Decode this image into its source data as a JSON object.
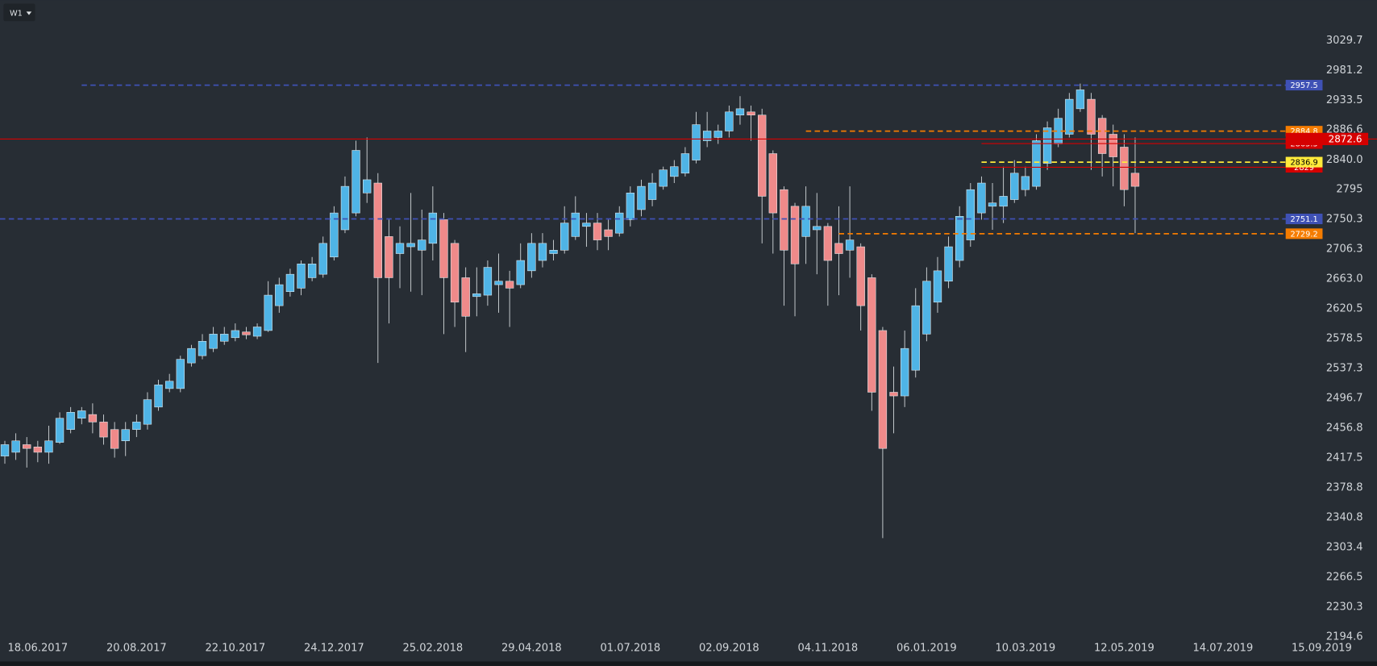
{
  "chart_data": {
    "type": "candlestick",
    "timeframe": "W1",
    "log_scale": true,
    "up_color": "#4fb4e6",
    "down_color": "#ef8a8a",
    "x": [
      "28.05.2017",
      "04.06.2017",
      "11.06.2017",
      "18.06.2017",
      "25.06.2017",
      "02.07.2017",
      "09.07.2017",
      "16.07.2017",
      "23.07.2017",
      "30.07.2017",
      "06.08.2017",
      "13.08.2017",
      "20.08.2017",
      "27.08.2017",
      "03.09.2017",
      "10.09.2017",
      "17.09.2017",
      "24.09.2017",
      "01.10.2017",
      "08.10.2017",
      "15.10.2017",
      "22.10.2017",
      "29.10.2017",
      "05.11.2017",
      "12.11.2017",
      "19.11.2017",
      "26.11.2017",
      "03.12.2017",
      "10.12.2017",
      "17.12.2017",
      "24.12.2017",
      "31.12.2017",
      "07.01.2018",
      "14.01.2018",
      "21.01.2018",
      "28.01.2018",
      "04.02.2018",
      "11.02.2018",
      "18.02.2018",
      "25.02.2018",
      "04.03.2018",
      "11.03.2018",
      "18.03.2018",
      "25.03.2018",
      "01.04.2018",
      "08.04.2018",
      "15.04.2018",
      "22.04.2018",
      "29.04.2018",
      "06.05.2018",
      "13.05.2018",
      "20.05.2018",
      "27.05.2018",
      "03.06.2018",
      "10.06.2018",
      "17.06.2018",
      "24.06.2018",
      "01.07.2018",
      "08.07.2018",
      "15.07.2018",
      "22.07.2018",
      "29.07.2018",
      "05.08.2018",
      "12.08.2018",
      "19.08.2018",
      "26.08.2018",
      "02.09.2018",
      "09.09.2018",
      "16.09.2018",
      "23.09.2018",
      "30.09.2018",
      "07.10.2018",
      "14.10.2018",
      "21.10.2018",
      "28.10.2018",
      "04.11.2018",
      "11.11.2018",
      "18.11.2018",
      "25.11.2018",
      "02.12.2018",
      "09.12.2018",
      "16.12.2018",
      "23.12.2018",
      "30.12.2018",
      "06.01.2019",
      "13.01.2019",
      "20.01.2019",
      "27.01.2019",
      "03.02.2019",
      "10.02.2019",
      "17.02.2019",
      "24.02.2019",
      "03.03.2019",
      "10.03.2019",
      "17.03.2019",
      "24.03.2019",
      "31.03.2019",
      "07.04.2019",
      "14.04.2019",
      "21.04.2019",
      "28.04.2019",
      "05.05.2019",
      "12.05.2019",
      "19.05.2019"
    ],
    "open": [
      2420,
      2425,
      2435,
      2432,
      2425,
      2438,
      2455,
      2470,
      2475,
      2465,
      2455,
      2440,
      2455,
      2462,
      2485,
      2510,
      2510,
      2545,
      2555,
      2565,
      2575,
      2580,
      2588,
      2582,
      2590,
      2625,
      2645,
      2650,
      2665,
      2670,
      2695,
      2735,
      2760,
      2790,
      2805,
      2725,
      2700,
      2710,
      2705,
      2715,
      2750,
      2715,
      2665,
      2638,
      2640,
      2655,
      2660,
      2655,
      2675,
      2690,
      2700,
      2705,
      2725,
      2740,
      2745,
      2735,
      2730,
      2750,
      2765,
      2780,
      2800,
      2815,
      2820,
      2840,
      2870,
      2875,
      2885,
      2910,
      2915,
      2910,
      2850,
      2795,
      2770,
      2725,
      2735,
      2740,
      2715,
      2705,
      2710,
      2665,
      2590,
      2505,
      2500,
      2535,
      2585,
      2630,
      2660,
      2690,
      2720,
      2760,
      2770,
      2770,
      2780,
      2795,
      2800,
      2835,
      2865,
      2880,
      2920,
      2935,
      2905,
      2880,
      2860,
      2820
    ],
    "high": [
      2440,
      2450,
      2445,
      2440,
      2460,
      2478,
      2485,
      2485,
      2490,
      2475,
      2465,
      2465,
      2475,
      2505,
      2522,
      2530,
      2555,
      2570,
      2585,
      2595,
      2595,
      2600,
      2595,
      2600,
      2660,
      2665,
      2678,
      2690,
      2695,
      2725,
      2770,
      2815,
      2870,
      2875,
      2820,
      2750,
      2740,
      2790,
      2765,
      2800,
      2760,
      2720,
      2680,
      2680,
      2690,
      2700,
      2675,
      2715,
      2730,
      2730,
      2720,
      2770,
      2785,
      2760,
      2760,
      2750,
      2770,
      2800,
      2810,
      2820,
      2830,
      2840,
      2860,
      2915,
      2915,
      2895,
      2925,
      2940,
      2925,
      2920,
      2855,
      2800,
      2775,
      2800,
      2790,
      2745,
      2770,
      2800,
      2715,
      2670,
      2595,
      2540,
      2590,
      2650,
      2680,
      2695,
      2725,
      2770,
      2805,
      2815,
      2805,
      2830,
      2840,
      2830,
      2880,
      2900,
      2920,
      2945,
      2960,
      2945,
      2910,
      2895,
      2880,
      2875
    ],
    "low": [
      2410,
      2415,
      2405,
      2412,
      2410,
      2436,
      2450,
      2462,
      2450,
      2435,
      2418,
      2420,
      2445,
      2455,
      2480,
      2505,
      2505,
      2540,
      2550,
      2560,
      2570,
      2575,
      2578,
      2578,
      2588,
      2615,
      2638,
      2640,
      2660,
      2665,
      2690,
      2730,
      2755,
      2775,
      2545,
      2600,
      2650,
      2645,
      2640,
      2690,
      2585,
      2595,
      2560,
      2610,
      2625,
      2615,
      2595,
      2650,
      2665,
      2680,
      2690,
      2700,
      2720,
      2710,
      2705,
      2705,
      2725,
      2740,
      2755,
      2770,
      2795,
      2805,
      2815,
      2835,
      2860,
      2865,
      2875,
      2895,
      2870,
      2715,
      2700,
      2625,
      2610,
      2685,
      2670,
      2625,
      2640,
      2665,
      2590,
      2480,
      2315,
      2450,
      2485,
      2525,
      2575,
      2615,
      2650,
      2680,
      2710,
      2750,
      2735,
      2745,
      2775,
      2785,
      2795,
      2825,
      2860,
      2875,
      2915,
      2825,
      2815,
      2800,
      2770,
      2730
    ],
    "close": [
      2435,
      2440,
      2430,
      2425,
      2440,
      2470,
      2478,
      2480,
      2465,
      2445,
      2430,
      2455,
      2465,
      2495,
      2515,
      2520,
      2550,
      2565,
      2575,
      2585,
      2585,
      2590,
      2584,
      2595,
      2640,
      2655,
      2670,
      2685,
      2685,
      2715,
      2760,
      2800,
      2855,
      2810,
      2665,
      2665,
      2715,
      2715,
      2720,
      2760,
      2665,
      2630,
      2610,
      2642,
      2680,
      2660,
      2650,
      2690,
      2715,
      2715,
      2705,
      2745,
      2760,
      2745,
      2720,
      2725,
      2760,
      2790,
      2800,
      2805,
      2825,
      2830,
      2850,
      2895,
      2885,
      2885,
      2915,
      2920,
      2910,
      2785,
      2760,
      2705,
      2685,
      2770,
      2740,
      2690,
      2700,
      2720,
      2625,
      2505,
      2430,
      2500,
      2565,
      2625,
      2660,
      2675,
      2710,
      2755,
      2795,
      2805,
      2775,
      2785,
      2820,
      2815,
      2870,
      2890,
      2905,
      2935,
      2950,
      2880,
      2850,
      2845,
      2795,
      2800
    ],
    "levels": [
      {
        "value": 2957.5,
        "color": "#3f51b5",
        "style": "dashed",
        "from": "16.07.2017"
      },
      {
        "value": 2751.1,
        "color": "#3f51b5",
        "style": "dashed"
      },
      {
        "value": 2729.2,
        "color": "#f57c00",
        "style": "dashed",
        "from": "11.11.2018"
      },
      {
        "value": 2884.8,
        "color": "#f57c00",
        "style": "dashed",
        "from": "21.10.2018"
      },
      {
        "value": 2865.5,
        "color": "#d50000",
        "style": "solid",
        "from": "10.02.2019"
      },
      {
        "value": 2829,
        "color": "#d50000",
        "style": "solid",
        "from": "10.02.2019"
      },
      {
        "value": 2836.9,
        "color": "#ffeb3b",
        "style": "dashed",
        "from": "10.02.2019"
      },
      {
        "value": 2872.6,
        "color": "#d50000",
        "style": "solid",
        "emphasis": true
      }
    ],
    "xlim": [
      "18.06.2017",
      "15.09.2019"
    ],
    "xticks": [
      "18.06.2017",
      "20.08.2017",
      "22.10.2017",
      "24.12.2017",
      "25.02.2018",
      "29.04.2018",
      "01.07.2018",
      "02.09.2018",
      "04.11.2018",
      "06.01.2019",
      "10.03.2019",
      "12.05.2019",
      "14.07.2019",
      "15.09.2019"
    ],
    "ylim": [
      2194.6,
      3029.7
    ],
    "yticks": [
      2194.6,
      2230.3,
      2266.5,
      2303.4,
      2340.8,
      2378.8,
      2417.5,
      2456.8,
      2496.7,
      2537.3,
      2578.5,
      2620.5,
      {
        "value": 2663,
        "label": "2663.0"
      },
      2706.3,
      2750.3,
      2795,
      {
        "value": 2840,
        "label": "2840.0"
      },
      2886.6,
      2933.5,
      2981.2,
      3029.7
    ]
  }
}
